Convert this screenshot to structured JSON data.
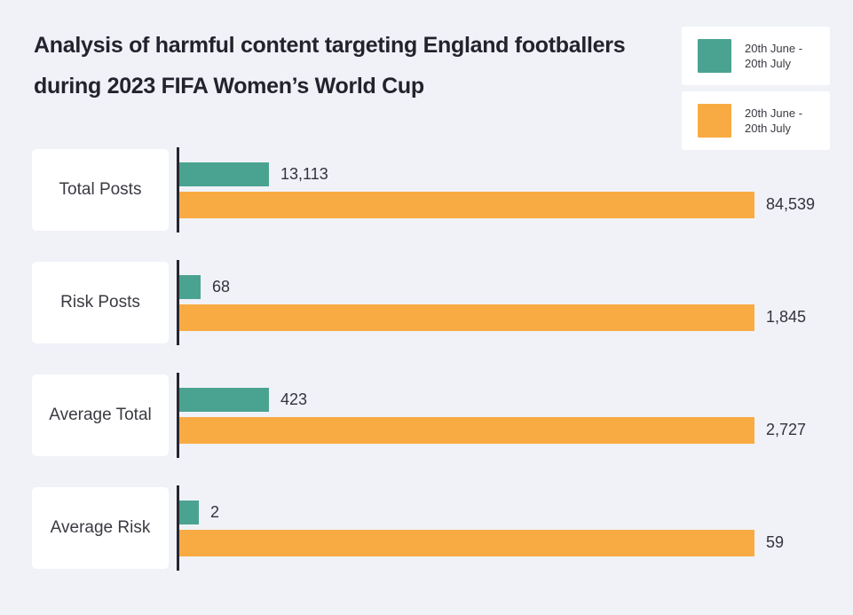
{
  "page": {
    "background": "#F0F2F8"
  },
  "title": {
    "line1": "Analysis of harmful content targeting England footballers",
    "line2": "during 2023 FIFA Women’s World Cup"
  },
  "legend": {
    "items": [
      {
        "color": "#4AA391",
        "label_line1": "20th June -",
        "label_line2": "20th July"
      },
      {
        "color": "#F9AB43",
        "label_line1": "20th June -",
        "label_line2": "20th July"
      }
    ]
  },
  "chart_data": {
    "type": "bar",
    "orientation": "horizontal",
    "title": "Analysis of harmful content targeting England footballers during 2023 FIFA Women’s World Cup",
    "categories": [
      "Total Posts",
      "Risk Posts",
      "Average Total",
      "Average Risk"
    ],
    "series": [
      {
        "name": "20th June - 20th July",
        "color": "#4AA391",
        "values": [
          13113,
          68,
          423,
          2
        ]
      },
      {
        "name": "20th June - 20th July",
        "color": "#F9AB43",
        "values": [
          84539,
          1845,
          2727,
          59
        ]
      }
    ],
    "rows": [
      {
        "category": "Total Posts",
        "bars": [
          {
            "series": 0,
            "value": 13113,
            "label": "13,113"
          },
          {
            "series": 1,
            "value": 84539,
            "label": "84,539"
          }
        ]
      },
      {
        "category": "Risk Posts",
        "bars": [
          {
            "series": 0,
            "value": 68,
            "label": "68"
          },
          {
            "series": 1,
            "value": 1845,
            "label": "1,845"
          }
        ]
      },
      {
        "category": "Average Total",
        "bars": [
          {
            "series": 0,
            "value": 423,
            "label": "423"
          },
          {
            "series": 1,
            "value": 2727,
            "label": "2,727"
          }
        ]
      },
      {
        "category": "Average Risk",
        "bars": [
          {
            "series": 0,
            "value": 2,
            "label": "2"
          },
          {
            "series": 1,
            "value": 59,
            "label": "59"
          }
        ]
      }
    ],
    "row_scaling": "independent-per-row (larger bar of each pair fills full track width)",
    "value_label_format": "thousands-comma",
    "grid": false,
    "legend_position": "top-right",
    "axis_ticks": "none"
  }
}
